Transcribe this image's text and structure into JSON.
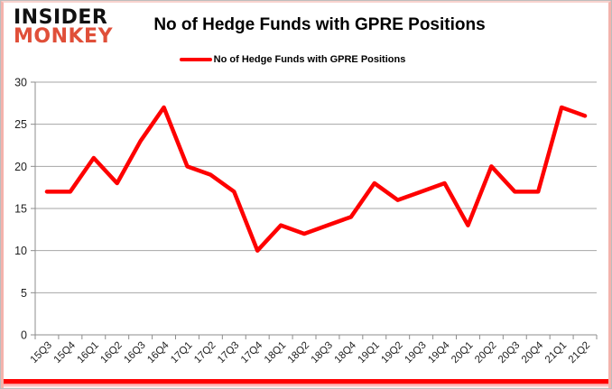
{
  "brand": {
    "line1": "INSIDER",
    "line2": "MONKEY"
  },
  "header": {
    "title": "No of Hedge Funds with GPRE Positions"
  },
  "legend": {
    "label": "No of Hedge Funds with GPRE Positions"
  },
  "colors": {
    "series": "#fe0000",
    "grid": "#a6a6a6",
    "axis": "#8c8c8c",
    "tick_label": "#1f1f1f",
    "brand_accent": "#e04f39",
    "brand_dark": "#111111",
    "frame_pink": "#f4b3ac",
    "bottom_bar": "#ff0101"
  },
  "chart_data": {
    "type": "line",
    "title": "No of Hedge Funds with GPRE Positions",
    "series_name": "No of Hedge Funds with GPRE Positions",
    "categories": [
      "15Q3",
      "15Q4",
      "16Q1",
      "16Q2",
      "16Q3",
      "16Q4",
      "17Q1",
      "17Q2",
      "17Q3",
      "17Q4",
      "18Q1",
      "18Q2",
      "18Q3",
      "18Q4",
      "19Q1",
      "19Q2",
      "19Q3",
      "19Q4",
      "20Q1",
      "20Q2",
      "20Q3",
      "20Q4",
      "21Q1",
      "21Q2"
    ],
    "values": [
      17,
      17,
      21,
      18,
      23,
      27,
      20,
      19,
      17,
      10,
      13,
      12,
      13,
      14,
      18,
      16,
      17,
      18,
      13,
      20,
      17,
      17,
      27,
      26
    ],
    "xlabel": "",
    "ylabel": "",
    "ylim": [
      0,
      30
    ],
    "yticks": [
      0,
      5,
      10,
      15,
      20,
      25,
      30
    ],
    "grid": true,
    "legend_position": "top"
  }
}
